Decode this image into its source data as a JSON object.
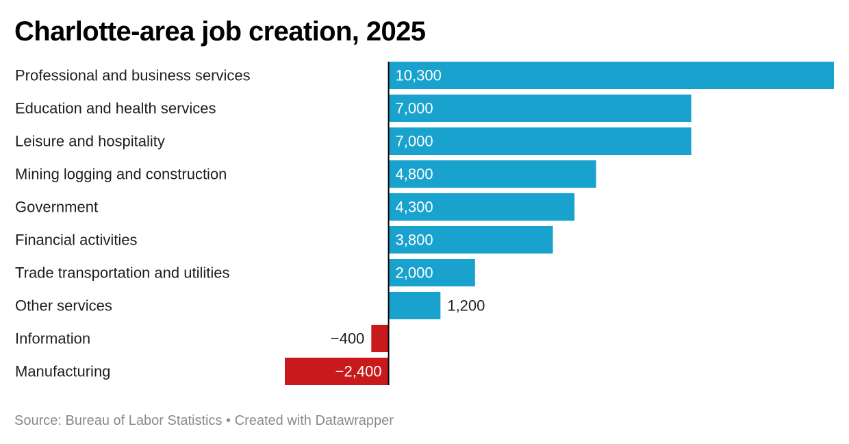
{
  "title": "Charlotte-area job creation, 2025",
  "footer": {
    "source": "Source: Bureau of Labor Statistics",
    "separator": " • ",
    "credit": "Created with Datawrapper"
  },
  "colors": {
    "positive": "#1aa2cf",
    "negative": "#c8191c",
    "axis": "#000000"
  },
  "chart_data": {
    "type": "bar",
    "orientation": "horizontal",
    "title": "Charlotte-area job creation, 2025",
    "categories": [
      "Professional and business services",
      "Education and health services",
      "Leisure and hospitality",
      "Mining logging and construction",
      "Government",
      "Financial activities",
      "Trade transportation and utilities",
      "Other services",
      "Information",
      "Manufacturing"
    ],
    "values": [
      10300,
      7000,
      7000,
      4800,
      4300,
      3800,
      2000,
      1200,
      -400,
      -2400
    ],
    "value_labels": [
      "10,300",
      "7,000",
      "7,000",
      "4,800",
      "4,300",
      "3,800",
      "2,000",
      "1,200",
      "−400",
      "−2,400"
    ],
    "xlim": [
      -2400,
      10300
    ],
    "grid": false,
    "legend": "none"
  }
}
